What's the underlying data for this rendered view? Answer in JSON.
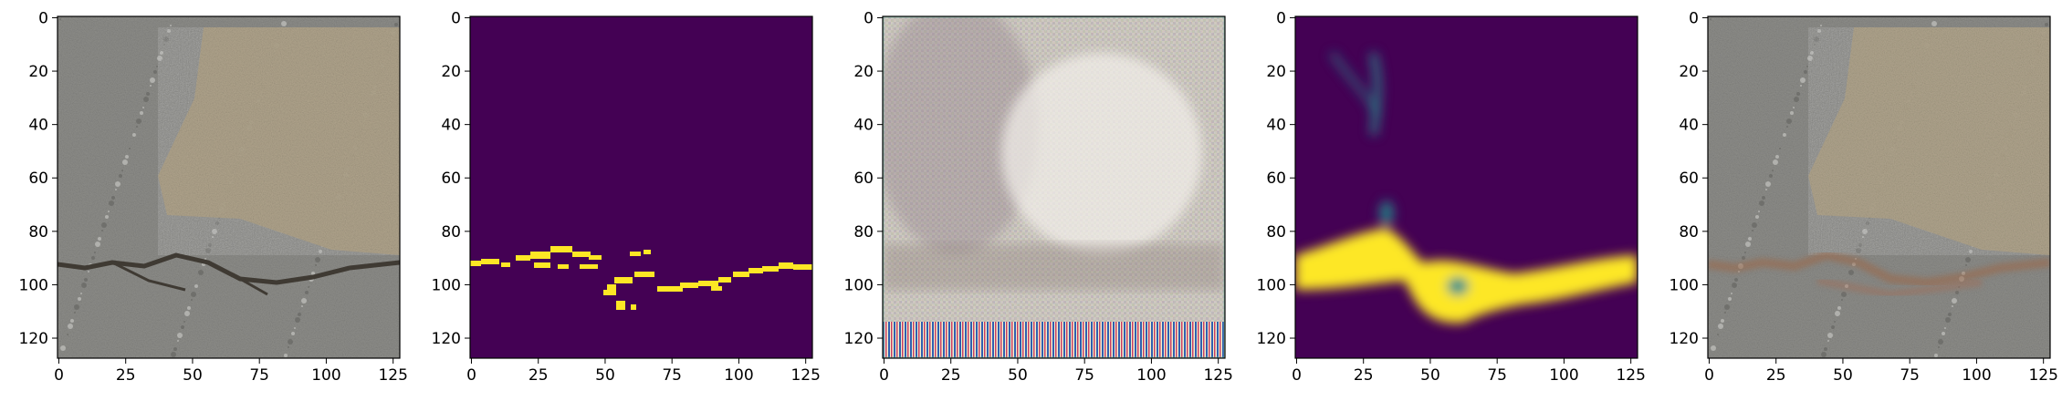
{
  "figure": {
    "panels": [
      {
        "id": "input-image",
        "kind": "photo"
      },
      {
        "id": "ground-truth-mask",
        "kind": "mask"
      },
      {
        "id": "noisy-reconstruction",
        "kind": "noise"
      },
      {
        "id": "predicted-mask",
        "kind": "heatmap"
      },
      {
        "id": "reconstructed-image",
        "kind": "photo-faded"
      }
    ],
    "x_ticks": [
      "0",
      "25",
      "50",
      "75",
      "100",
      "125"
    ],
    "x_tick_values": [
      0,
      25,
      50,
      75,
      100,
      125
    ],
    "y_ticks": [
      "0",
      "20",
      "40",
      "60",
      "80",
      "100",
      "120"
    ],
    "y_tick_values": [
      0,
      20,
      40,
      60,
      80,
      100,
      120
    ],
    "image_extent": [
      -0.5,
      127.5
    ],
    "colors": {
      "viridis_dark": "#440154",
      "viridis_mid": "#21918c",
      "viridis_bright": "#fde725",
      "asphalt": "#8e8e8a",
      "patch": "#b3a78e",
      "crack": "#3f3a33"
    }
  }
}
